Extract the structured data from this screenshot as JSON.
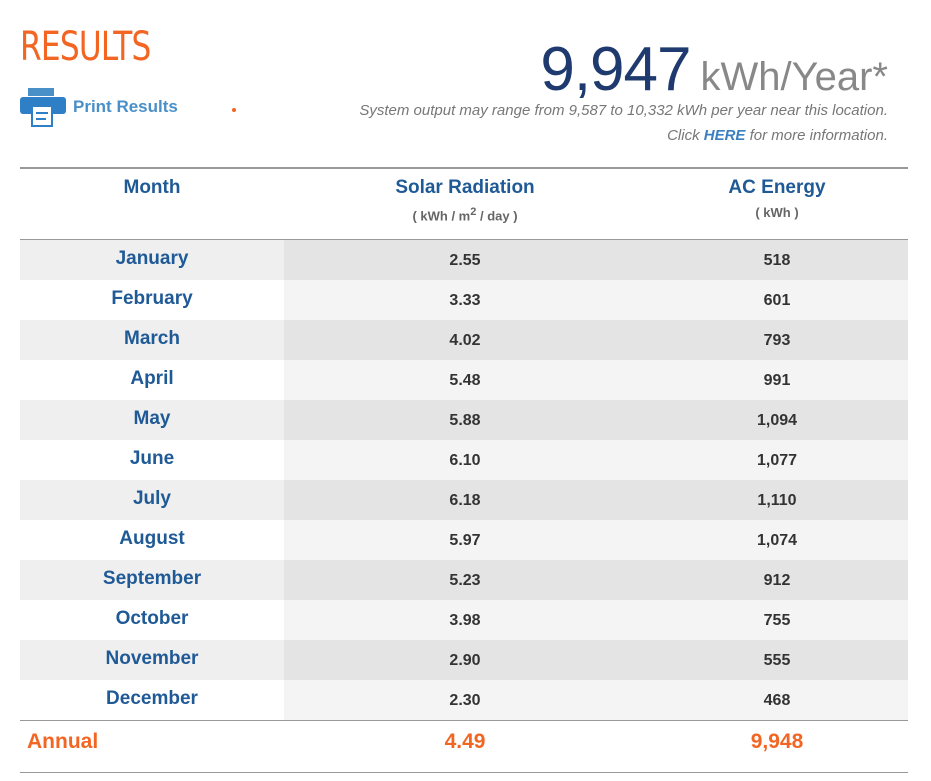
{
  "header": {
    "title": "RESULTS",
    "print": "Print Results",
    "total": "9,947",
    "unit": "kWh/Year*",
    "range": "System output may range from 9,587 to 10,332 kWh per year near this location.",
    "click_before": "Click ",
    "click_link": "HERE",
    "click_after": " for more information."
  },
  "table": {
    "columns": [
      {
        "title": "Month"
      },
      {
        "title": "Solar Radiation",
        "unit_before": "( kWh / m",
        "unit_sup": "2",
        "unit_after": " / day )"
      },
      {
        "title": "AC Energy",
        "unit": "( kWh )"
      }
    ],
    "rows": [
      [
        "January",
        "2.55",
        "518"
      ],
      [
        "February",
        "3.33",
        "601"
      ],
      [
        "March",
        "4.02",
        "793"
      ],
      [
        "April",
        "5.48",
        "991"
      ],
      [
        "May",
        "5.88",
        "1,094"
      ],
      [
        "June",
        "6.10",
        "1,077"
      ],
      [
        "July",
        "6.18",
        "1,110"
      ],
      [
        "August",
        "5.97",
        "1,074"
      ],
      [
        "September",
        "5.23",
        "912"
      ],
      [
        "October",
        "3.98",
        "755"
      ],
      [
        "November",
        "2.90",
        "555"
      ],
      [
        "December",
        "2.30",
        "468"
      ]
    ],
    "annual": [
      "Annual",
      "4.49",
      "9,948"
    ]
  }
}
